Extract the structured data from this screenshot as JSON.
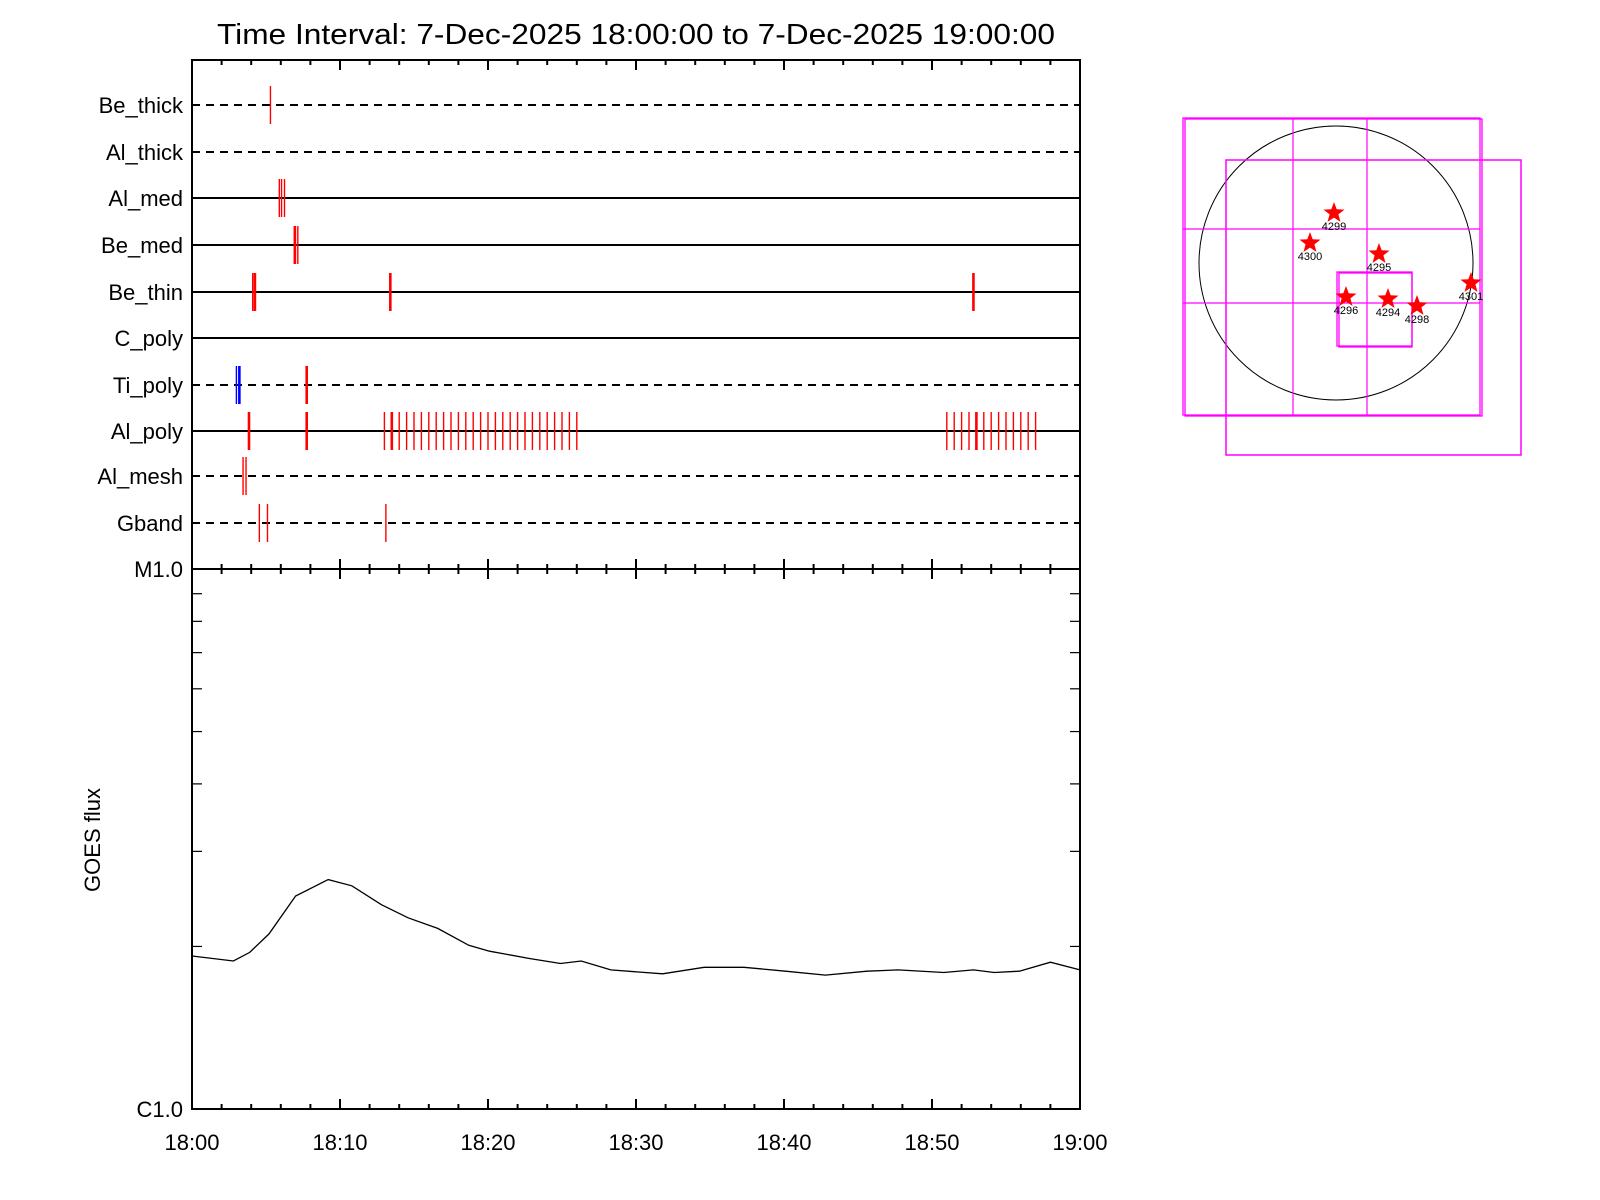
{
  "title": "Time Interval:  7-Dec-2025 18:00:00 to  7-Dec-2025 19:00:00",
  "chart_data": [
    {
      "type": "event-timeline",
      "x_range": [
        "18:00",
        "19:00"
      ],
      "x_unit": "minutes after 18:00",
      "rows": [
        {
          "name": "Be_thick",
          "line_style": "dashed",
          "events": [
            {
              "t": 5.3,
              "color": "#ff0000"
            }
          ]
        },
        {
          "name": "Al_thick",
          "line_style": "dashed",
          "events": []
        },
        {
          "name": "Al_med",
          "line_style": "solid",
          "events": [
            {
              "t": 5.9,
              "color": "#ff0000"
            },
            {
              "t": 6.05,
              "color": "#ff0000"
            },
            {
              "t": 6.25,
              "color": "#ff0000"
            }
          ]
        },
        {
          "name": "Be_med",
          "line_style": "solid",
          "events": [
            {
              "t": 6.95,
              "color": "#ff0000",
              "thick": true
            },
            {
              "t": 7.15,
              "color": "#ff0000"
            }
          ]
        },
        {
          "name": "Be_thin",
          "line_style": "solid",
          "events": [
            {
              "t": 4.1,
              "color": "#ff0000"
            },
            {
              "t": 4.25,
              "color": "#ff0000",
              "thick": true
            },
            {
              "t": 13.4,
              "color": "#ff0000",
              "thick": true
            },
            {
              "t": 52.8,
              "color": "#ff0000",
              "thick": true
            }
          ]
        },
        {
          "name": "C_poly",
          "line_style": "solid",
          "events": []
        },
        {
          "name": "Ti_poly",
          "line_style": "dashed",
          "events": [
            {
              "t": 3.0,
              "color": "#0000ff"
            },
            {
              "t": 3.2,
              "color": "#0000ff",
              "thick": true
            },
            {
              "t": 7.75,
              "color": "#ff0000",
              "thick": true
            }
          ]
        },
        {
          "name": "Al_poly",
          "line_style": "solid",
          "events": [
            {
              "t": 3.85,
              "color": "#ff0000",
              "thick": true
            },
            {
              "t": 7.75,
              "color": "#ff0000",
              "thick": true
            },
            {
              "t": 13.0,
              "color": "#ff0000"
            },
            {
              "t": 13.5,
              "color": "#ff0000",
              "thick": true
            },
            {
              "t": 14.0,
              "color": "#ff0000"
            },
            {
              "t": 14.5,
              "color": "#ff0000"
            },
            {
              "t": 15.0,
              "color": "#ff0000"
            },
            {
              "t": 15.5,
              "color": "#ff0000"
            },
            {
              "t": 16.0,
              "color": "#ff0000"
            },
            {
              "t": 16.5,
              "color": "#ff0000"
            },
            {
              "t": 17.0,
              "color": "#ff0000"
            },
            {
              "t": 17.5,
              "color": "#ff0000"
            },
            {
              "t": 18.0,
              "color": "#ff0000"
            },
            {
              "t": 18.5,
              "color": "#ff0000"
            },
            {
              "t": 19.0,
              "color": "#ff0000"
            },
            {
              "t": 19.5,
              "color": "#ff0000"
            },
            {
              "t": 20.0,
              "color": "#ff0000"
            },
            {
              "t": 20.5,
              "color": "#ff0000"
            },
            {
              "t": 21.0,
              "color": "#ff0000"
            },
            {
              "t": 21.5,
              "color": "#ff0000"
            },
            {
              "t": 22.0,
              "color": "#ff0000"
            },
            {
              "t": 22.5,
              "color": "#ff0000"
            },
            {
              "t": 23.0,
              "color": "#ff0000"
            },
            {
              "t": 23.5,
              "color": "#ff0000"
            },
            {
              "t": 24.0,
              "color": "#ff0000"
            },
            {
              "t": 24.5,
              "color": "#ff0000"
            },
            {
              "t": 25.0,
              "color": "#ff0000"
            },
            {
              "t": 25.5,
              "color": "#ff0000"
            },
            {
              "t": 26.0,
              "color": "#ff0000"
            },
            {
              "t": 51.0,
              "color": "#ff0000"
            },
            {
              "t": 51.5,
              "color": "#ff0000"
            },
            {
              "t": 52.0,
              "color": "#ff0000"
            },
            {
              "t": 52.5,
              "color": "#ff0000"
            },
            {
              "t": 53.0,
              "color": "#ff0000",
              "thick": true
            },
            {
              "t": 53.5,
              "color": "#ff0000"
            },
            {
              "t": 54.0,
              "color": "#ff0000"
            },
            {
              "t": 54.5,
              "color": "#ff0000"
            },
            {
              "t": 55.0,
              "color": "#ff0000"
            },
            {
              "t": 55.5,
              "color": "#ff0000"
            },
            {
              "t": 56.0,
              "color": "#ff0000"
            },
            {
              "t": 56.5,
              "color": "#ff0000"
            },
            {
              "t": 57.0,
              "color": "#ff0000"
            }
          ]
        },
        {
          "name": "Al_mesh",
          "line_style": "dashed",
          "events": [
            {
              "t": 3.45,
              "color": "#ff0000"
            },
            {
              "t": 3.65,
              "color": "#ff0000"
            }
          ]
        },
        {
          "name": "Gband",
          "line_style": "dashed",
          "events": [
            {
              "t": 4.55,
              "color": "#ff0000"
            },
            {
              "t": 5.1,
              "color": "#ff0000"
            },
            {
              "t": 13.1,
              "color": "#ff0000"
            }
          ]
        }
      ]
    },
    {
      "type": "line",
      "ylabel": "GOES flux",
      "yscale": "log",
      "ylim": [
        1e-06,
        1e-05
      ],
      "ytick_labels": [
        "C1.0",
        "M1.0"
      ],
      "xtick_labels": [
        "18:00",
        "18:10",
        "18:20",
        "18:30",
        "18:40",
        "18:50",
        "19:00"
      ],
      "x_unit": "minutes after 18:00",
      "x": [
        0,
        2.8,
        3.9,
        5.2,
        7.0,
        9.2,
        10.8,
        12.8,
        14.6,
        16.6,
        18.7,
        20.1,
        22.8,
        24.9,
        26.3,
        28.3,
        31.8,
        34.6,
        37.3,
        40.1,
        42.8,
        45.6,
        47.7,
        50.8,
        52.8,
        54.2,
        55.9,
        58.0,
        60
      ],
      "y": [
        1.92e-06,
        1.88e-06,
        1.95e-06,
        2.11e-06,
        2.48e-06,
        2.66e-06,
        2.59e-06,
        2.39e-06,
        2.26e-06,
        2.16e-06,
        2.01e-06,
        1.96e-06,
        1.9e-06,
        1.86e-06,
        1.88e-06,
        1.81e-06,
        1.78e-06,
        1.83e-06,
        1.83e-06,
        1.8e-06,
        1.77e-06,
        1.8e-06,
        1.81e-06,
        1.79e-06,
        1.81e-06,
        1.79e-06,
        1.8e-06,
        1.87e-06,
        1.81e-06
      ],
      "color": "#000000",
      "grid": false
    }
  ],
  "sun_map": {
    "limb_color": "#000000",
    "box_color": "#ff00ff",
    "marker_color": "#ff0000",
    "active_regions": [
      "4299",
      "4300",
      "4295",
      "4296",
      "4294",
      "4298",
      "4301"
    ]
  }
}
